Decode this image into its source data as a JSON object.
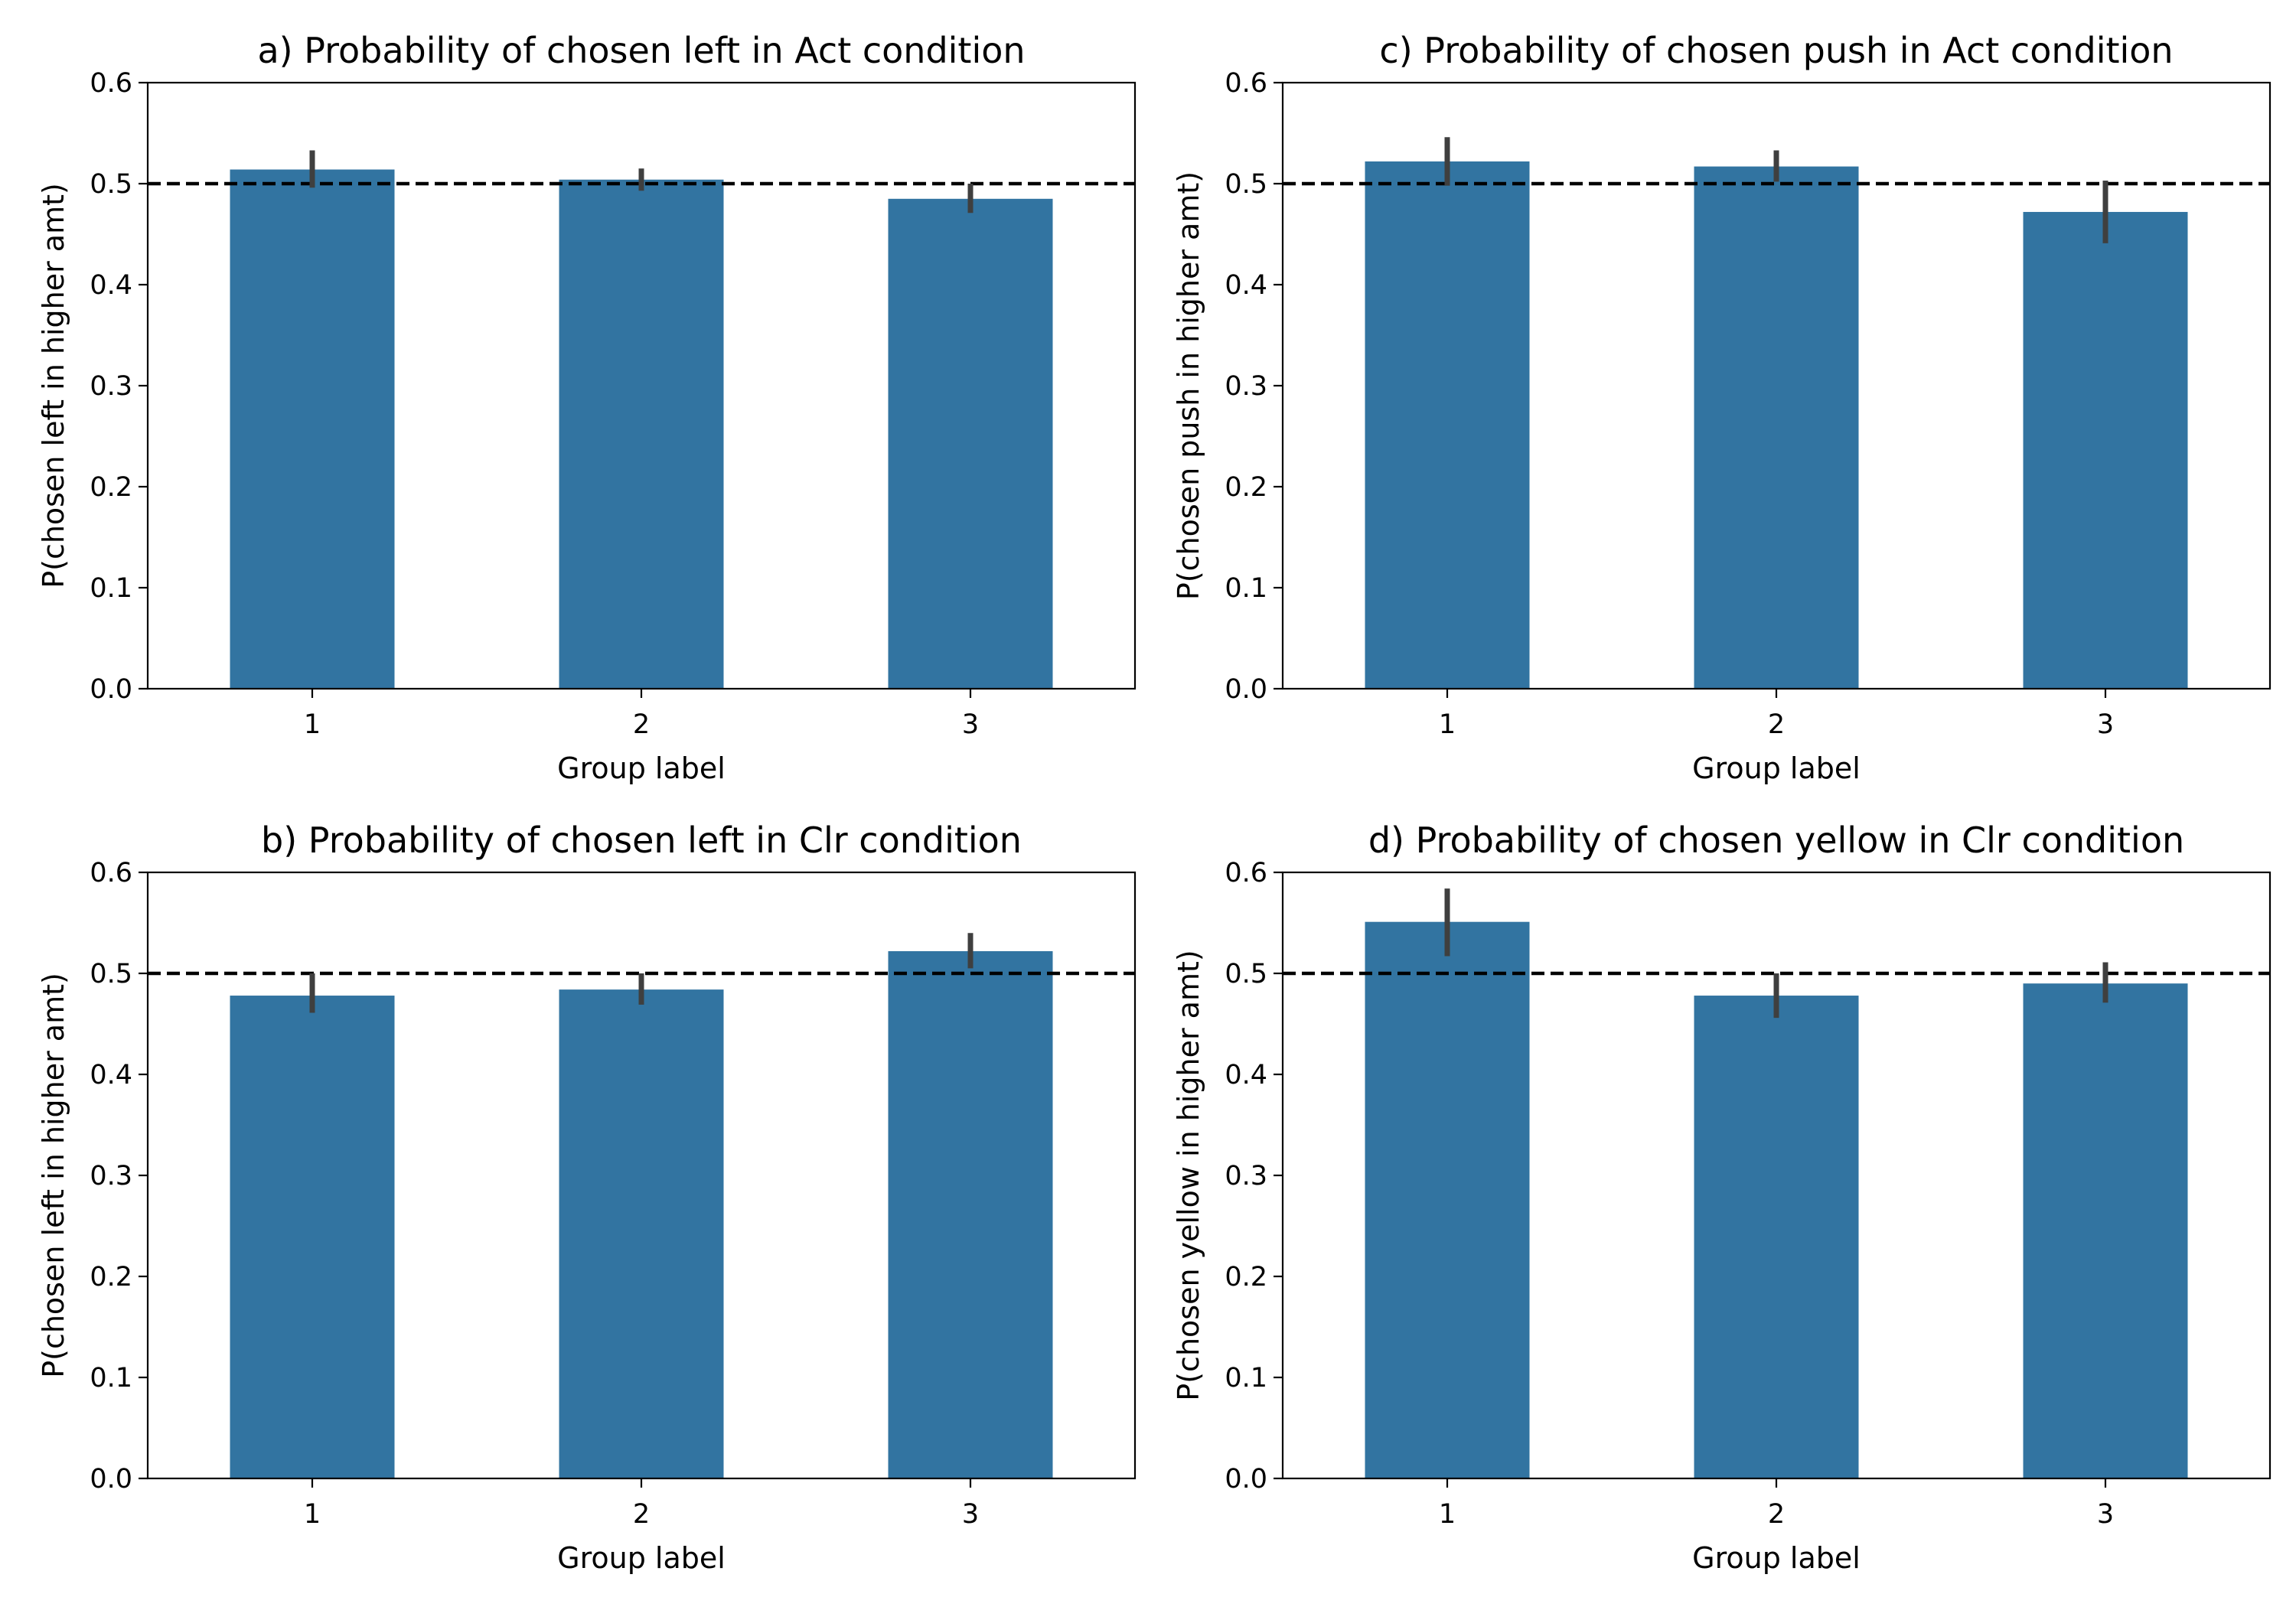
{
  "colors": {
    "bar": "#3274a1",
    "error_bar": "#3f3f3f",
    "reference_line": "#000000",
    "axes": "#000000"
  },
  "chart_data": [
    {
      "type": "bar",
      "title": "a) Probability of chosen left in Act condition",
      "xlabel": "Group label",
      "ylabel": "P(chosen left in higher amt)",
      "categories": [
        "1",
        "2",
        "3"
      ],
      "values": [
        0.514,
        0.504,
        0.485
      ],
      "error_low": [
        0.496,
        0.493,
        0.471
      ],
      "error_high": [
        0.533,
        0.515,
        0.5
      ],
      "ylim": [
        0,
        0.6
      ],
      "yticks": [
        "0.0",
        "0.1",
        "0.2",
        "0.3",
        "0.4",
        "0.5",
        "0.6"
      ],
      "reference_line": 0.5,
      "grid": false
    },
    {
      "type": "bar",
      "title": "c) Probability of chosen push in Act condition",
      "xlabel": "Group label",
      "ylabel": "P(chosen push in higher amt)",
      "categories": [
        "1",
        "2",
        "3"
      ],
      "values": [
        0.522,
        0.517,
        0.472
      ],
      "error_low": [
        0.498,
        0.502,
        0.441
      ],
      "error_high": [
        0.546,
        0.533,
        0.503
      ],
      "ylim": [
        0,
        0.6
      ],
      "yticks": [
        "0.0",
        "0.1",
        "0.2",
        "0.3",
        "0.4",
        "0.5",
        "0.6"
      ],
      "reference_line": 0.5,
      "grid": false
    },
    {
      "type": "bar",
      "title": "b) Probability of chosen left in Clr condition",
      "xlabel": "Group label",
      "ylabel": "P(chosen left in higher amt)",
      "categories": [
        "1",
        "2",
        "3"
      ],
      "values": [
        0.478,
        0.484,
        0.522
      ],
      "error_low": [
        0.461,
        0.469,
        0.505
      ],
      "error_high": [
        0.5,
        0.5,
        0.54
      ],
      "ylim": [
        0,
        0.6
      ],
      "yticks": [
        "0.0",
        "0.1",
        "0.2",
        "0.3",
        "0.4",
        "0.5",
        "0.6"
      ],
      "reference_line": 0.5,
      "grid": false
    },
    {
      "type": "bar",
      "title": "d) Probability of chosen yellow in Clr condition",
      "xlabel": "Group label",
      "ylabel": "P(chosen yellow in higher amt)",
      "categories": [
        "1",
        "2",
        "3"
      ],
      "values": [
        0.551,
        0.478,
        0.49
      ],
      "error_low": [
        0.517,
        0.456,
        0.471
      ],
      "error_high": [
        0.584,
        0.5,
        0.511
      ],
      "ylim": [
        0,
        0.6
      ],
      "yticks": [
        "0.0",
        "0.1",
        "0.2",
        "0.3",
        "0.4",
        "0.5",
        "0.6"
      ],
      "reference_line": 0.5,
      "grid": false
    }
  ]
}
